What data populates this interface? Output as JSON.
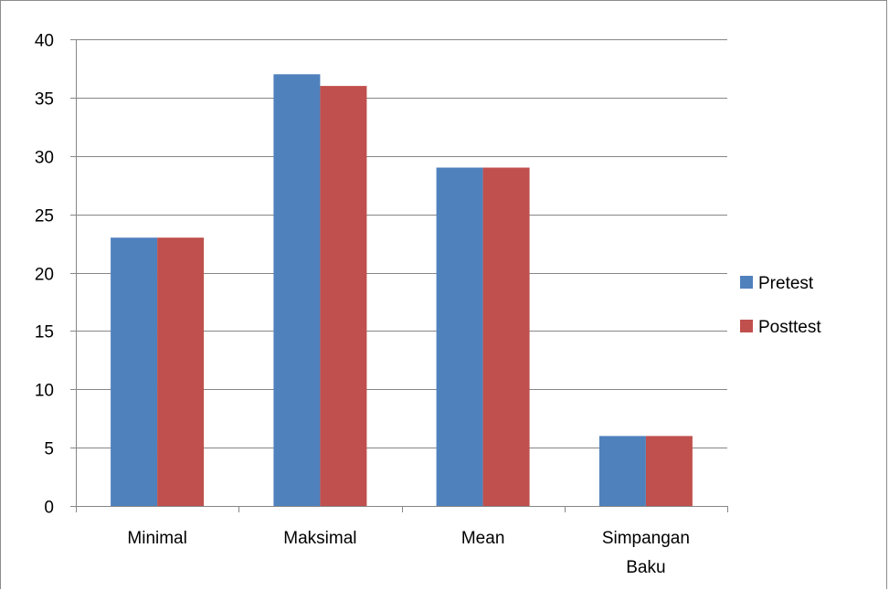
{
  "chart_data": {
    "type": "bar",
    "categories": [
      [
        "Minimal"
      ],
      [
        "Maksimal"
      ],
      [
        "Mean"
      ],
      [
        "Simpangan",
        "Baku"
      ]
    ],
    "series": [
      {
        "name": "Pretest",
        "color": "#4f81bd",
        "values": [
          23,
          37,
          29,
          6
        ]
      },
      {
        "name": "Posttest",
        "color": "#c0504d",
        "values": [
          23,
          36,
          29,
          6
        ]
      }
    ],
    "ylim": [
      0,
      40
    ],
    "yticks": [
      0,
      5,
      10,
      15,
      20,
      25,
      30,
      35,
      40
    ],
    "grid": true,
    "legend_position": "right",
    "gridline_color": "#868686"
  }
}
